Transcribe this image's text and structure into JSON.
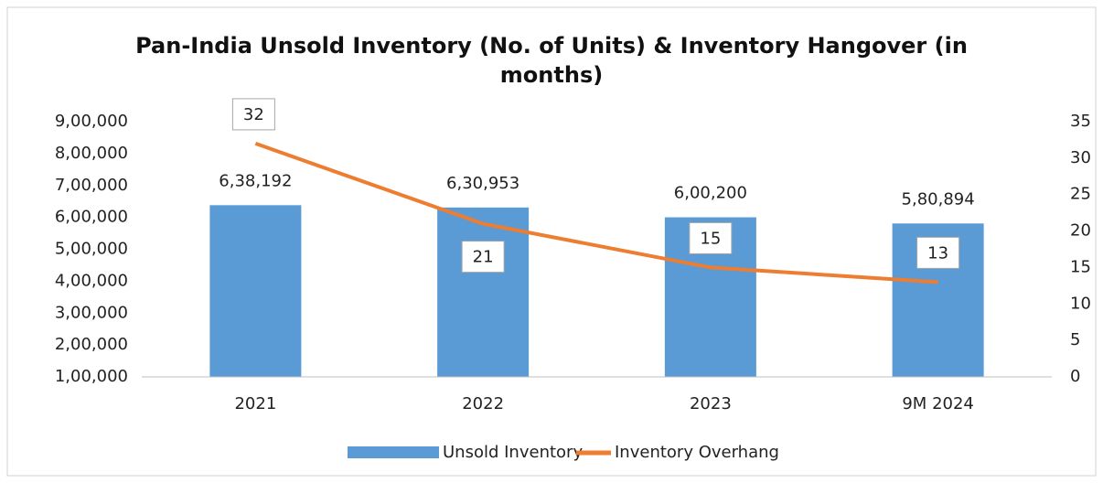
{
  "chart_data": {
    "type": "bar-line",
    "title": "Pan-India Unsold Inventory (No. of Units) & Inventory Hangover (in months)",
    "categories": [
      "2021",
      "2022",
      "2023",
      "9M 2024"
    ],
    "series": [
      {
        "name": "Unsold Inventory",
        "color": "#5b9bd5",
        "type": "bar",
        "values": [
          638192,
          630953,
          600200,
          580894
        ],
        "value_labels": [
          "6,38,192",
          "6,30,953",
          "6,00,200",
          "5,80,894"
        ]
      },
      {
        "name": "Inventory Overhang",
        "color": "#ed7d31",
        "type": "line",
        "axis": "y2",
        "values": [
          32,
          21,
          15,
          13
        ]
      }
    ],
    "ylim": [
      100000,
      900000
    ],
    "yticks": [
      {
        "value": 100000,
        "label": "1,00,000"
      },
      {
        "value": 200000,
        "label": "2,00,000"
      },
      {
        "value": 300000,
        "label": "3,00,000"
      },
      {
        "value": 400000,
        "label": "4,00,000"
      },
      {
        "value": 500000,
        "label": "5,00,000"
      },
      {
        "value": 600000,
        "label": "6,00,000"
      },
      {
        "value": 700000,
        "label": "7,00,000"
      },
      {
        "value": 800000,
        "label": "8,00,000"
      },
      {
        "value": 900000,
        "label": "9,00,000"
      }
    ],
    "y2lim": [
      0,
      35
    ],
    "y2ticks": [
      0,
      5,
      10,
      15,
      20,
      25,
      30,
      35
    ],
    "legend": "bottom"
  }
}
